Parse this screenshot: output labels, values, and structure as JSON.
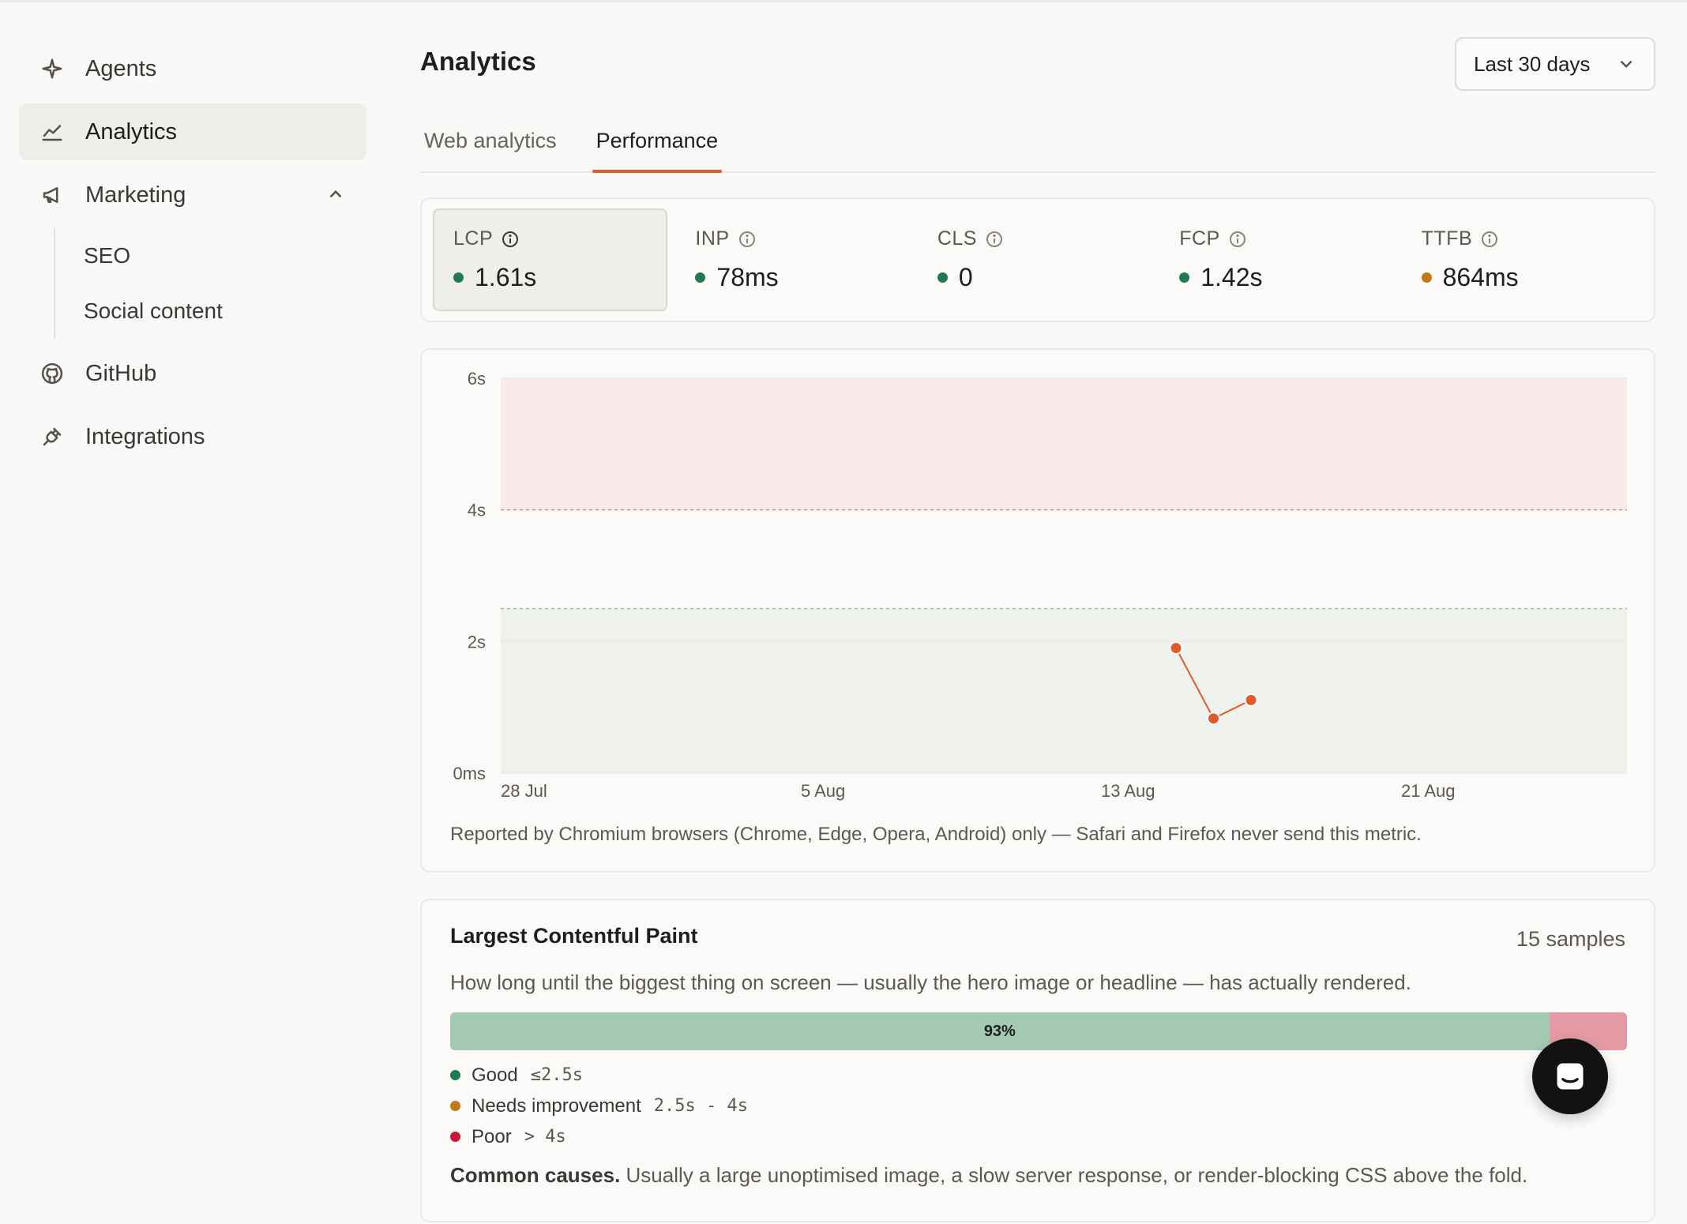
{
  "sidebar": {
    "items": [
      {
        "label": "Agents",
        "icon": "sparkle-icon"
      },
      {
        "label": "Analytics",
        "icon": "line-chart-icon",
        "active": true
      },
      {
        "label": "Marketing",
        "icon": "megaphone-icon",
        "expanded": true
      },
      {
        "label": "GitHub",
        "icon": "github-icon"
      },
      {
        "label": "Integrations",
        "icon": "plug-icon"
      }
    ],
    "marketing_sub": [
      "SEO",
      "Social content"
    ]
  },
  "header": {
    "title": "Analytics",
    "date_range": "Last 30 days"
  },
  "tabs": [
    {
      "label": "Web analytics",
      "active": false
    },
    {
      "label": "Performance",
      "active": true
    }
  ],
  "metrics": [
    {
      "label": "LCP",
      "value": "1.61s",
      "status": "good",
      "active": true
    },
    {
      "label": "INP",
      "value": "78ms",
      "status": "good"
    },
    {
      "label": "CLS",
      "value": "0",
      "status": "good"
    },
    {
      "label": "FCP",
      "value": "1.42s",
      "status": "good"
    },
    {
      "label": "TTFB",
      "value": "864ms",
      "status": "needs-improvement"
    }
  ],
  "colors": {
    "good": "#1f7a52",
    "needs_improvement": "#c07a18",
    "poor": "#c8153c",
    "accent": "#e05a2b",
    "bar_good": "#a3c9b3",
    "bar_poor": "#e39aa5"
  },
  "chart_data": {
    "type": "line",
    "metric": "LCP",
    "unit": "s",
    "x_ticks": [
      "28 Jul",
      "5 Aug",
      "13 Aug",
      "21 Aug"
    ],
    "y_ticks": [
      "0ms",
      "2s",
      "4s",
      "6s"
    ],
    "ylim": [
      0,
      6
    ],
    "thresholds": {
      "good": 2.5,
      "poor": 4
    },
    "points": [
      {
        "date": "2024-08-15",
        "value": 1.9
      },
      {
        "date": "2024-08-16",
        "value": 0.83
      },
      {
        "date": "2024-08-17",
        "value": 1.11
      }
    ],
    "grid": true,
    "note": "Reported by Chromium browsers (Chrome, Edge, Opera, Android) only — Safari and Firefox never send this metric."
  },
  "lcp": {
    "title": "Largest Contentful Paint",
    "samples": "15 samples",
    "description": "How long until the biggest thing on screen — usually the hero image or headline — has actually rendered.",
    "distribution": [
      {
        "label": "93%",
        "fraction": 0.934,
        "status": "good"
      },
      {
        "label": "",
        "fraction": 0.066,
        "status": "poor"
      }
    ],
    "legend": [
      {
        "label": "Good",
        "range": "≤2.5s",
        "status": "good"
      },
      {
        "label": "Needs improvement",
        "range": "2.5s - 4s",
        "status": "needs_improvement"
      },
      {
        "label": "Poor",
        "range": "> 4s",
        "status": "poor"
      }
    ],
    "causes_label": "Common causes.",
    "causes_text": "Usually a large unoptimised image, a slow server response, or render-blocking CSS above the fold."
  }
}
